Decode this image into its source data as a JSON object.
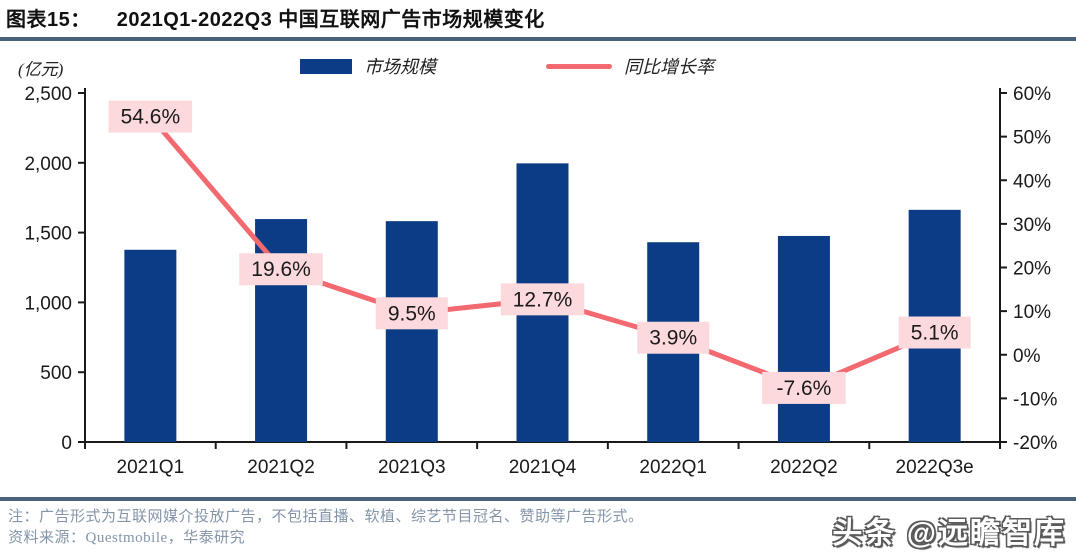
{
  "figure": {
    "label": "图表15：",
    "title": "2021Q1-2022Q3 中国互联网广告市场规模变化"
  },
  "chart_data": {
    "type": "bar",
    "combo": "bar+line",
    "unit_label": "(亿元)",
    "categories": [
      "2021Q1",
      "2021Q2",
      "2021Q3",
      "2021Q4",
      "2022Q1",
      "2022Q2",
      "2022Q3e"
    ],
    "series": [
      {
        "name": "市场规模",
        "type": "bar",
        "axis": "left",
        "values": [
          1377,
          1597,
          1582,
          1996,
          1431,
          1476,
          1663
        ],
        "color": "#0c3c85"
      },
      {
        "name": "同比增长率",
        "type": "line",
        "axis": "right",
        "values": [
          54.6,
          19.6,
          9.5,
          12.7,
          3.9,
          -7.6,
          5.1
        ],
        "labels": [
          "54.6%",
          "19.6%",
          "9.5%",
          "12.7%",
          "3.9%",
          "-7.6%",
          "5.1%"
        ],
        "color": "#f2696f",
        "label_bg": "#fbd9dd"
      }
    ],
    "left_axis": {
      "min": 0,
      "max": 2500,
      "step": 500,
      "ticks": [
        "0",
        "500",
        "1,000",
        "1,500",
        "2,000",
        "2,500"
      ]
    },
    "right_axis": {
      "min": -20,
      "max": 60,
      "step": 10,
      "ticks": [
        "-20%",
        "-10%",
        "0%",
        "10%",
        "20%",
        "30%",
        "40%",
        "50%",
        "60%"
      ]
    },
    "legend_position": "top",
    "grid": false
  },
  "footer": {
    "note": "注：广告形式为互联网媒介投放广告，不包括直播、软植、综艺节目冠名、赞助等广告形式。",
    "source": "资料来源：Questmobile，华泰研究",
    "watermark": "头条 @远瞻智库"
  },
  "colors": {
    "bar": "#0c3c85",
    "line": "#f2696f",
    "label_bg": "#fbd9dd",
    "rule": "#4a617c",
    "axis": "#1a1a1a",
    "note_text": "#8494a9"
  }
}
